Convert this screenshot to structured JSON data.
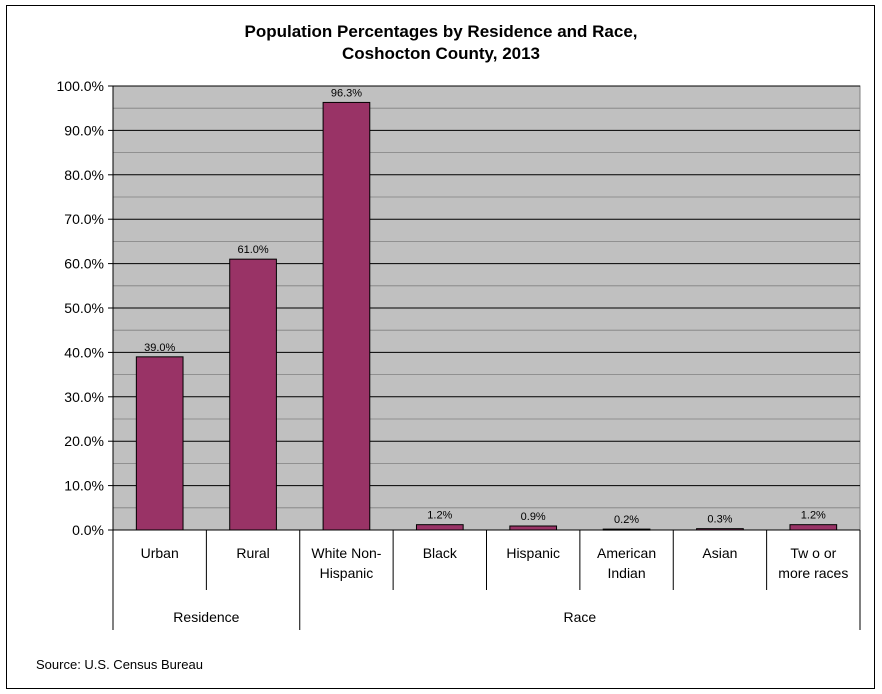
{
  "chart_data": {
    "type": "bar",
    "title": [
      "Population Percentages by Residence and Race,",
      "Coshocton County, 2013"
    ],
    "categories": [
      [
        "Urban"
      ],
      [
        "Rural"
      ],
      [
        "White Non-",
        "Hispanic"
      ],
      [
        "Black"
      ],
      [
        "Hispanic"
      ],
      [
        "American",
        "Indian"
      ],
      [
        "Asian"
      ],
      [
        "Tw o or",
        "more races"
      ]
    ],
    "groups": [
      {
        "label": "Residence",
        "start": 0,
        "end": 2
      },
      {
        "label": "Race",
        "start": 2,
        "end": 8
      }
    ],
    "values": [
      39.0,
      61.0,
      96.3,
      1.2,
      0.9,
      0.2,
      0.3,
      1.2
    ],
    "data_labels": [
      "39.0%",
      "61.0%",
      "96.3%",
      "1.2%",
      "0.9%",
      "0.2%",
      "0.3%",
      "1.2%"
    ],
    "ylim": [
      0,
      100
    ],
    "yticks": [
      "0.0%",
      "10.0%",
      "20.0%",
      "30.0%",
      "40.0%",
      "50.0%",
      "60.0%",
      "70.0%",
      "80.0%",
      "90.0%",
      "100.0%"
    ],
    "grid": true,
    "colors": {
      "bar": "#993366",
      "plot_bg": "#c0c0c0"
    },
    "source": "Source: U.S. Census Bureau"
  }
}
